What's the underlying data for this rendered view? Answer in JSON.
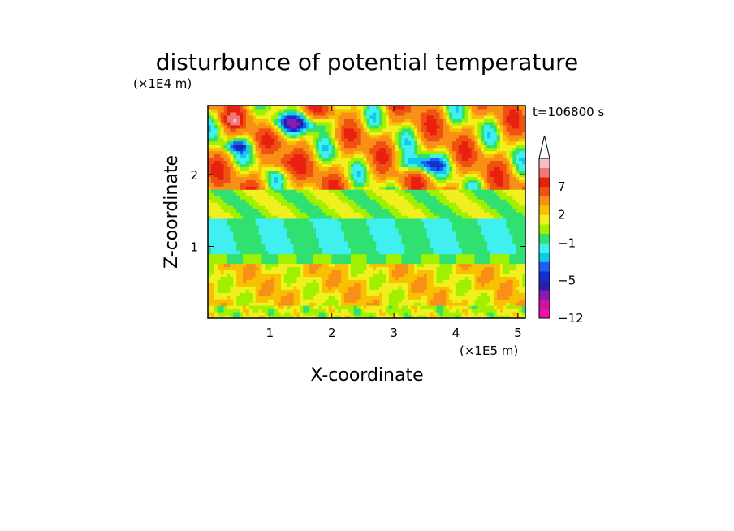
{
  "chart_data": {
    "type": "heatmap",
    "title": "disturbunce of potential temperature",
    "xlabel": "X-coordinate",
    "ylabel": "Z-coordinate",
    "x_unit": "(×1E5 m)",
    "y_unit": "(×1E4 m)",
    "time_label": "t=106800 s",
    "xlim": [
      0,
      5.12
    ],
    "ylim": [
      0,
      2.96
    ],
    "x_ticks": [
      "1",
      "2",
      "3",
      "4",
      "5"
    ],
    "x_tick_values": [
      1,
      2,
      3,
      4,
      5
    ],
    "y_ticks": [
      "1",
      "2"
    ],
    "y_tick_values": [
      1,
      2
    ],
    "colorbar": {
      "labels": [
        "7",
        "2",
        "−1",
        "−5",
        "−12"
      ],
      "label_levels": [
        7,
        2,
        -1,
        -5,
        -12
      ],
      "levels": [
        -12,
        -10,
        -8,
        -6,
        -5,
        -4,
        -3,
        -2,
        -1,
        0,
        1,
        2,
        3,
        5,
        7,
        9,
        11
      ],
      "colors": [
        "#ee10a8",
        "#c81898",
        "#8a1ab0",
        "#2a20a8",
        "#1030d0",
        "#2060f0",
        "#10c8e8",
        "#40f0f0",
        "#30e070",
        "#a0f000",
        "#f0f020",
        "#f8c000",
        "#f89018",
        "#f05010",
        "#e82010",
        "#f07878",
        "#f8c0c0"
      ],
      "extend": "max"
    },
    "bands": [
      {
        "z_from": 0.0,
        "z_to": 0.2,
        "base_level": 1,
        "notes": "yellow-green near ground with green patches"
      },
      {
        "z_from": 0.2,
        "z_to": 0.75,
        "base_level": 2,
        "notes": "orange/yellow"
      },
      {
        "z_from": 0.75,
        "z_to": 0.9,
        "base_level": 0,
        "notes": "green"
      },
      {
        "z_from": 0.9,
        "z_to": 1.4,
        "base_level": -1,
        "notes": "cyan"
      },
      {
        "z_from": 1.4,
        "z_to": 1.8,
        "base_level": 0,
        "notes": "green/yellow"
      },
      {
        "z_from": 1.8,
        "z_to": 2.96,
        "base_level": 3,
        "notes": "orange/red with blue cells"
      }
    ]
  }
}
